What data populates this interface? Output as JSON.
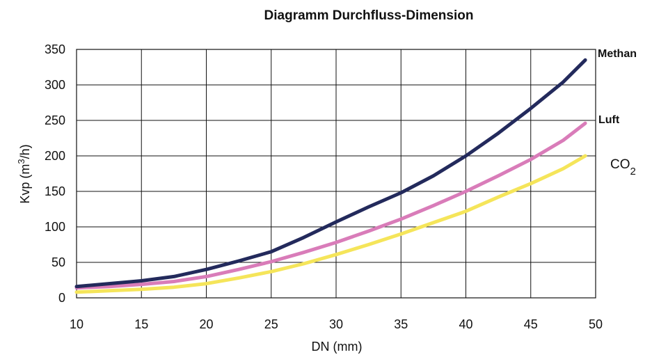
{
  "chart_data": {
    "type": "line",
    "title": "Diagramm Durchfluss-Dimension",
    "xlabel": "DN (mm)",
    "ylabel": {
      "base": "Kvp (m",
      "sup": "3",
      "rest": "/h)"
    },
    "xlim": [
      10,
      50
    ],
    "ylim": [
      0,
      350
    ],
    "xticks": [
      "10",
      "15",
      "20",
      "25",
      "30",
      "35",
      "40",
      "45",
      "50"
    ],
    "yticks": [
      "0",
      "50",
      "100",
      "150",
      "200",
      "250",
      "300",
      "350"
    ],
    "grid": true,
    "series": [
      {
        "name": "Methan",
        "color": "#232a5c",
        "x": [
          10,
          12.5,
          15,
          17.5,
          20,
          22.5,
          25,
          27.5,
          30,
          32.5,
          35,
          37.5,
          40,
          42.5,
          45,
          47.5,
          49.2
        ],
        "y": [
          16,
          20,
          24,
          30,
          40,
          52,
          65,
          85,
          107,
          128,
          148,
          172,
          200,
          232,
          267,
          304,
          335
        ]
      },
      {
        "name": "Luft",
        "color": "#d97cb9",
        "x": [
          10,
          12.5,
          15,
          17.5,
          20,
          22.5,
          25,
          27.5,
          30,
          32.5,
          35,
          37.5,
          40,
          42.5,
          45,
          47.5,
          49.2
        ],
        "y": [
          14,
          16,
          19,
          23,
          30,
          40,
          51,
          64,
          78,
          94,
          111,
          130,
          150,
          172,
          195,
          222,
          246
        ]
      },
      {
        "name": "CO",
        "name_sub": "2",
        "color": "#f5e55a",
        "x": [
          10,
          12.5,
          15,
          17.5,
          20,
          22.5,
          25,
          27.5,
          30,
          32.5,
          35,
          37.5,
          40,
          42.5,
          45,
          47.5,
          49.2
        ],
        "y": [
          8,
          10,
          12,
          15,
          20,
          28,
          37,
          48,
          61,
          75,
          90,
          106,
          122,
          142,
          161,
          182,
          200
        ]
      }
    ]
  }
}
